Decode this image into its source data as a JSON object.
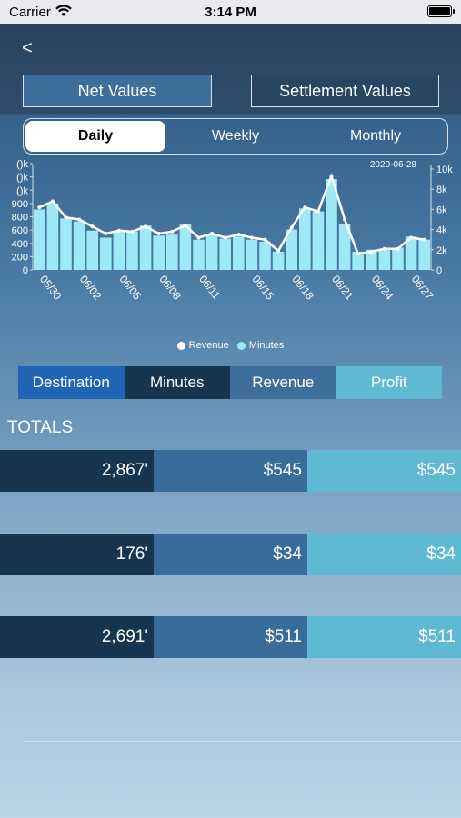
{
  "status_bar": {
    "carrier": "Carrier",
    "time": "3:14 PM"
  },
  "nav": {
    "back": "<"
  },
  "value_toggle": {
    "net": "Net Values",
    "settlement": "Settlement Values",
    "selected": "net"
  },
  "period": {
    "items": [
      "Daily",
      "Weekly",
      "Monthly"
    ],
    "selected": "Daily"
  },
  "chart_data": {
    "type": "bar",
    "date_label": "2020-06-28",
    "categories": [
      "05/30",
      "05/31",
      "06/01",
      "06/02",
      "06/03",
      "06/04",
      "06/05",
      "06/06",
      "06/07",
      "06/08",
      "06/09",
      "06/10",
      "06/11",
      "06/12",
      "06/13",
      "06/14",
      "06/15",
      "06/16",
      "06/17",
      "06/18",
      "06/19",
      "06/20",
      "06/21",
      "06/22",
      "06/23",
      "06/24",
      "06/25",
      "06/26",
      "06/27",
      "06/28"
    ],
    "xtick_labels": [
      "05/30",
      "06/02",
      "06/05",
      "06/08",
      "06/11",
      "06/15",
      "06/18",
      "06/21",
      "06/24",
      "06/27"
    ],
    "ytick_left": [
      "0",
      "200",
      "400",
      "600",
      "800",
      "900",
      "()k",
      "()k",
      "()k"
    ],
    "ytick_right": [
      "0",
      "2k",
      "4k",
      "6k",
      "8k",
      "10k"
    ],
    "series": [
      {
        "name": "Minutes",
        "axis": "right",
        "values": [
          6000,
          6600,
          5100,
          4800,
          3900,
          3200,
          3800,
          3800,
          4400,
          3400,
          3500,
          4500,
          3000,
          3500,
          3100,
          3300,
          3000,
          2800,
          1800,
          4000,
          6100,
          5800,
          9000,
          4600,
          1800,
          2000,
          2100,
          2200,
          3300,
          3000
        ]
      },
      {
        "name": "Revenue",
        "axis": "right",
        "values": [
          6200,
          6800,
          5200,
          5000,
          4300,
          3600,
          3900,
          3800,
          4300,
          3600,
          3800,
          4400,
          3200,
          3600,
          3200,
          3500,
          3200,
          3000,
          1900,
          4200,
          6200,
          5800,
          9300,
          5000,
          1600,
          1800,
          2100,
          2100,
          3200,
          3000
        ]
      }
    ],
    "y_right_lim": [
      0,
      10000
    ],
    "legend": [
      "Revenue",
      "Minutes"
    ],
    "colors": {
      "revenue": "#ffffff",
      "minutes": "#9ee8f7"
    }
  },
  "tabs": {
    "destination": "Destination",
    "minutes": "Minutes",
    "revenue": "Revenue",
    "profit": "Profit"
  },
  "totals": {
    "label": "TOTALS",
    "rows": [
      {
        "minutes": "2,867'",
        "revenue": "$545",
        "profit": "$545"
      },
      {
        "minutes": "176'",
        "revenue": "$34",
        "profit": "$34"
      },
      {
        "minutes": "2,691'",
        "revenue": "$511",
        "profit": "$511"
      }
    ]
  }
}
